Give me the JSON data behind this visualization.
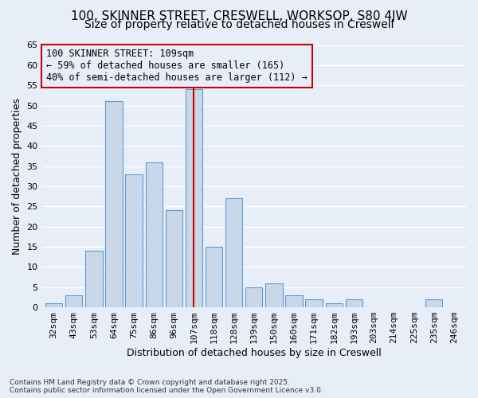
{
  "title1": "100, SKINNER STREET, CRESWELL, WORKSOP, S80 4JW",
  "title2": "Size of property relative to detached houses in Creswell",
  "xlabel": "Distribution of detached houses by size in Creswell",
  "ylabel": "Number of detached properties",
  "categories": [
    "32sqm",
    "43sqm",
    "53sqm",
    "64sqm",
    "75sqm",
    "86sqm",
    "96sqm",
    "107sqm",
    "118sqm",
    "128sqm",
    "139sqm",
    "150sqm",
    "160sqm",
    "171sqm",
    "182sqm",
    "193sqm",
    "203sqm",
    "214sqm",
    "225sqm",
    "235sqm",
    "246sqm"
  ],
  "values": [
    1,
    3,
    14,
    51,
    33,
    36,
    24,
    54,
    15,
    27,
    5,
    6,
    3,
    2,
    1,
    2,
    0,
    0,
    0,
    2,
    0
  ],
  "bar_color": "#c8d8e8",
  "bar_edge_color": "#5b9bd5",
  "highlight_index": 7,
  "highlight_line_color": "#cc0000",
  "annotation_line1": "100 SKINNER STREET: 109sqm",
  "annotation_line2": "← 59% of detached houses are smaller (165)",
  "annotation_line3": "40% of semi-detached houses are larger (112) →",
  "annotation_box_color": "#cc0000",
  "ylim": [
    0,
    65
  ],
  "yticks": [
    0,
    5,
    10,
    15,
    20,
    25,
    30,
    35,
    40,
    45,
    50,
    55,
    60,
    65
  ],
  "background_color": "#e8eef8",
  "grid_color": "#ffffff",
  "footer": "Contains HM Land Registry data © Crown copyright and database right 2025.\nContains public sector information licensed under the Open Government Licence v3.0.",
  "title1_fontsize": 11,
  "title2_fontsize": 10,
  "xlabel_fontsize": 9,
  "ylabel_fontsize": 9,
  "tick_fontsize": 8,
  "annotation_fontsize": 8.5
}
